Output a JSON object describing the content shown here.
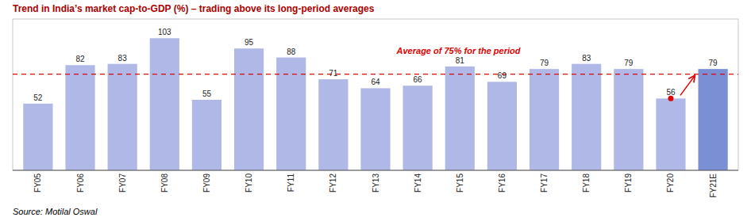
{
  "chart_data": {
    "type": "bar",
    "title": "Trend in India’s market cap-to-GDP (%) – trading above its long-period averages",
    "title_color": "#aa0000",
    "source": "Source: Motilal Oswal",
    "categories": [
      "FY05",
      "FY06",
      "FY07",
      "FY08",
      "FY09",
      "FY10",
      "FY11",
      "FY12",
      "FY13",
      "FY14",
      "FY15",
      "FY16",
      "FY17",
      "FY18",
      "FY19",
      "FY20",
      "FY21E"
    ],
    "values": [
      52,
      82,
      83,
      103,
      55,
      95,
      88,
      71,
      64,
      66,
      81,
      69,
      79,
      83,
      79,
      56,
      79
    ],
    "colors": [
      "#b0b8e8",
      "#b0b8e8",
      "#b0b8e8",
      "#b0b8e8",
      "#b0b8e8",
      "#b0b8e8",
      "#b0b8e8",
      "#b0b8e8",
      "#b0b8e8",
      "#b0b8e8",
      "#b0b8e8",
      "#b0b8e8",
      "#b0b8e8",
      "#b0b8e8",
      "#b0b8e8",
      "#b0b8e8",
      "#7b8fd4"
    ],
    "average": {
      "value": 75,
      "label": "Average of 75% for the period",
      "color": "#dd0000"
    },
    "arrow": {
      "from": "FY20",
      "to": "FY21E",
      "color": "#dd0000"
    },
    "ylim": [
      0,
      118
    ],
    "data_labels": true,
    "tick_labels": "x",
    "grid": false
  }
}
